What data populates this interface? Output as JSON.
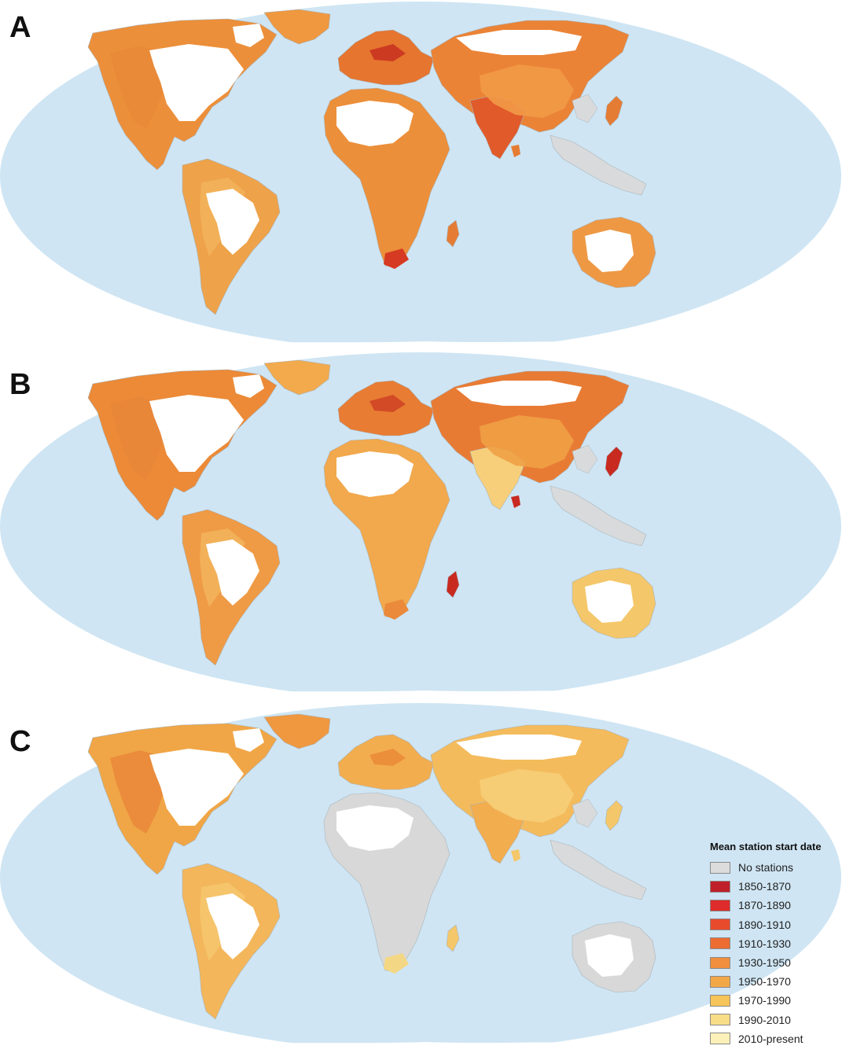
{
  "panels": [
    {
      "letter": "A",
      "continent_colors": {
        "north_america": "#ec8f3a",
        "north_america_inner": "#e98a3a",
        "greenland": "#ef9840",
        "south_america": "#eea24a",
        "south_america_inner": "#f2b35a",
        "europe": "#e6752f",
        "europe_accent": "#cc3a22",
        "africa": "#ec8f3a",
        "africa_south": "#d63a22",
        "asia": "#ea8336",
        "asia_inner": "#f29a47",
        "india": "#e15a2a",
        "se_asia": "#d9dadb",
        "australia": "#ee9844",
        "island_accent": "#e57c34"
      }
    },
    {
      "letter": "B",
      "continent_colors": {
        "north_america": "#ec8a37",
        "north_america_inner": "#e9863a",
        "greenland": "#f2aa4d",
        "south_america": "#ef9a45",
        "south_america_inner": "#f2b35a",
        "europe": "#e87c33",
        "europe_accent": "#d24a26",
        "africa": "#f2a84c",
        "africa_south": "#ea8a3a",
        "asia": "#e87b34",
        "asia_inner": "#f0a045",
        "india": "#f7cf7a",
        "se_asia": "#d9dadb",
        "australia": "#f4c76a",
        "island_accent": "#c82a20"
      }
    },
    {
      "letter": "C",
      "continent_colors": {
        "north_america": "#f0a646",
        "north_america_inner": "#e98a3a",
        "greenland": "#ef9840",
        "south_america": "#f3b65a",
        "south_america_inner": "#f5c56d",
        "europe": "#f2ad4f",
        "europe_accent": "#ec8f3a",
        "africa": "#d8d8d8",
        "africa_south": "#f4d784",
        "asia": "#f4bb5c",
        "asia_inner": "#f6cf78",
        "india": "#f2ad4f",
        "se_asia": "#d9dadb",
        "australia": "#d8d8d8",
        "island_accent": "#f4c76a"
      }
    }
  ],
  "map_style": {
    "ocean": "#cfe5f3",
    "land": "#ffffff",
    "border": "#a9b5bd"
  },
  "legend": {
    "title": "Mean station start date",
    "items": [
      {
        "label": "No stations",
        "color": "#dcdcdc"
      },
      {
        "label": "1850-1870",
        "color": "#c0202a"
      },
      {
        "label": "1870-1890",
        "color": "#de2b2b"
      },
      {
        "label": "1890-1910",
        "color": "#e84b2c"
      },
      {
        "label": "1910-1930",
        "color": "#ed6c32"
      },
      {
        "label": "1930-1950",
        "color": "#f08f3e"
      },
      {
        "label": "1950-1970",
        "color": "#f3a848"
      },
      {
        "label": "1970-1990",
        "color": "#f6c458"
      },
      {
        "label": "1990-2010",
        "color": "#f8dc86"
      },
      {
        "label": "2010-present",
        "color": "#fbf1b9"
      }
    ]
  }
}
